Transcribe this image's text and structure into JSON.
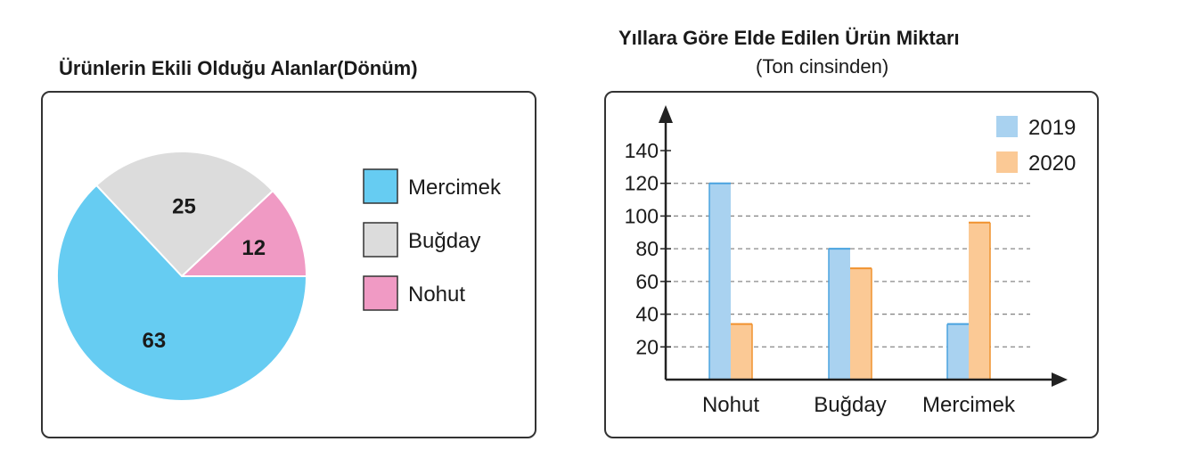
{
  "chart_data": [
    {
      "type": "pie",
      "title": "Ürünlerin Ekili Olduğu Alanlar(Dönüm)",
      "slices": [
        {
          "label": "Mercimek",
          "value": 63,
          "color": "#66ccf2"
        },
        {
          "label": "Buğday",
          "value": 25,
          "color": "#dcdcdc"
        },
        {
          "label": "Nohut",
          "value": 12,
          "color": "#f09ac4"
        }
      ],
      "legend": "right"
    },
    {
      "type": "bar",
      "title": "Yıllara Göre Elde Edilen Ürün Miktarı",
      "subtitle": "(Ton cinsinden)",
      "categories": [
        "Nohut",
        "Buğday",
        "Mercimek"
      ],
      "series": [
        {
          "name": "2019",
          "values": [
            120,
            80,
            34
          ],
          "color": "#a9d2f0",
          "edge": "#4aa3df"
        },
        {
          "name": "2020",
          "values": [
            34,
            68,
            96
          ],
          "color": "#fbc995",
          "edge": "#f0922f"
        }
      ],
      "yticks": [
        20,
        40,
        60,
        80,
        100,
        120,
        140
      ],
      "ylim": [
        0,
        140
      ],
      "grid": "dashed",
      "legend": "top-right"
    }
  ]
}
